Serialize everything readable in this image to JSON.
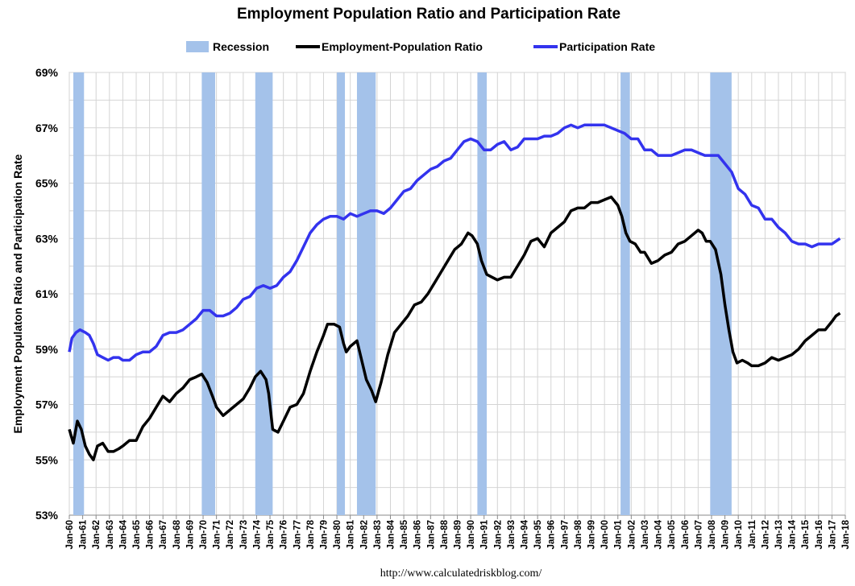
{
  "chart_data": {
    "type": "line",
    "title": "Employment Population Ratio and Participation Rate",
    "ylabel": "Employment Populaton Ratio and Participation Rate",
    "xlabel": "",
    "source": "http://www.calculatedriskblog.com/",
    "ylim": [
      53,
      69
    ],
    "xlim": [
      1960.0,
      2018.0
    ],
    "y_ticks": [
      53,
      55,
      57,
      59,
      61,
      63,
      65,
      67,
      69
    ],
    "y_tick_labels": [
      "53%",
      "55%",
      "57%",
      "59%",
      "61%",
      "63%",
      "65%",
      "67%",
      "69%"
    ],
    "x_tick_labels": [
      "Jan-60",
      "Jan-61",
      "Jan-62",
      "Jan-63",
      "Jan-64",
      "Jan-65",
      "Jan-66",
      "Jan-67",
      "Jan-68",
      "Jan-69",
      "Jan-70",
      "Jan-71",
      "Jan-72",
      "Jan-73",
      "Jan-74",
      "Jan-75",
      "Jan-76",
      "Jan-77",
      "Jan-78",
      "Jan-79",
      "Jan-80",
      "Jan-81",
      "Jan-82",
      "Jan-83",
      "Jan-84",
      "Jan-85",
      "Jan-86",
      "Jan-87",
      "Jan-88",
      "Jan-89",
      "Jan-90",
      "Jan-91",
      "Jan-92",
      "Jan-93",
      "Jan-94",
      "Jan-95",
      "Jan-96",
      "Jan-97",
      "Jan-98",
      "Jan-99",
      "Jan-00",
      "Jan-01",
      "Jan-02",
      "Jan-03",
      "Jan-04",
      "Jan-05",
      "Jan-06",
      "Jan-07",
      "Jan-08",
      "Jan-09",
      "Jan-10",
      "Jan-11",
      "Jan-12",
      "Jan-13",
      "Jan-14",
      "Jan-15",
      "Jan-16",
      "Jan-17",
      "Jan-18"
    ],
    "grid": true,
    "legend_position": "top-center",
    "legend": [
      {
        "name": "Recession",
        "kind": "band",
        "color": "#a4c2ea"
      },
      {
        "name": "Employment-Population Ratio",
        "kind": "line",
        "color": "#000000"
      },
      {
        "name": "Participation Rate",
        "kind": "line",
        "color": "#3333ee"
      }
    ],
    "recessions": [
      [
        1960.3,
        1961.1
      ],
      [
        1969.9,
        1970.9
      ],
      [
        1973.9,
        1975.2
      ],
      [
        1980.0,
        1980.6
      ],
      [
        1981.5,
        1982.9
      ],
      [
        1990.5,
        1991.2
      ],
      [
        2001.2,
        2001.9
      ],
      [
        2007.9,
        2009.5
      ]
    ],
    "series": [
      {
        "name": "Employment-Population Ratio",
        "color": "#000000",
        "x": [
          1960.0,
          1960.3,
          1960.6,
          1960.9,
          1961.2,
          1961.5,
          1961.8,
          1962.1,
          1962.5,
          1962.9,
          1963.3,
          1963.7,
          1964.0,
          1964.5,
          1965.0,
          1965.5,
          1966.0,
          1966.5,
          1967.0,
          1967.5,
          1968.0,
          1968.5,
          1969.0,
          1969.5,
          1969.9,
          1970.3,
          1970.7,
          1971.0,
          1971.5,
          1972.0,
          1972.5,
          1973.0,
          1973.5,
          1973.9,
          1974.3,
          1974.7,
          1974.9,
          1975.2,
          1975.6,
          1976.0,
          1976.5,
          1977.0,
          1977.5,
          1978.0,
          1978.5,
          1979.0,
          1979.3,
          1979.8,
          1980.2,
          1980.5,
          1980.7,
          1981.0,
          1981.5,
          1981.8,
          1982.2,
          1982.6,
          1982.9,
          1983.3,
          1983.8,
          1984.3,
          1984.8,
          1985.3,
          1985.8,
          1986.3,
          1986.8,
          1987.3,
          1987.8,
          1988.3,
          1988.8,
          1989.3,
          1989.8,
          1990.1,
          1990.5,
          1990.8,
          1991.2,
          1991.6,
          1992.0,
          1992.5,
          1993.0,
          1993.5,
          1994.0,
          1994.5,
          1995.0,
          1995.5,
          1996.0,
          1996.5,
          1997.0,
          1997.5,
          1998.0,
          1998.5,
          1999.0,
          1999.5,
          2000.0,
          2000.5,
          2001.0,
          2001.3,
          2001.6,
          2001.9,
          2002.3,
          2002.7,
          2003.0,
          2003.5,
          2004.0,
          2004.5,
          2005.0,
          2005.5,
          2006.0,
          2006.5,
          2007.0,
          2007.3,
          2007.6,
          2007.9,
          2008.3,
          2008.7,
          2009.0,
          2009.3,
          2009.6,
          2009.9,
          2010.3,
          2010.7,
          2011.0,
          2011.5,
          2012.0,
          2012.5,
          2013.0,
          2013.5,
          2014.0,
          2014.5,
          2015.0,
          2015.5,
          2016.0,
          2016.5,
          2017.0,
          2017.3,
          2017.6
        ],
        "values": [
          56.1,
          55.6,
          56.4,
          56.1,
          55.5,
          55.2,
          55.0,
          55.5,
          55.6,
          55.3,
          55.3,
          55.4,
          55.5,
          55.7,
          55.7,
          56.2,
          56.5,
          56.9,
          57.3,
          57.1,
          57.4,
          57.6,
          57.9,
          58.0,
          58.1,
          57.8,
          57.3,
          56.9,
          56.6,
          56.8,
          57.0,
          57.2,
          57.6,
          58.0,
          58.2,
          57.9,
          57.4,
          56.1,
          56.0,
          56.4,
          56.9,
          57.0,
          57.4,
          58.2,
          58.9,
          59.5,
          59.9,
          59.9,
          59.8,
          59.2,
          58.9,
          59.1,
          59.3,
          58.7,
          57.9,
          57.5,
          57.1,
          57.8,
          58.8,
          59.6,
          59.9,
          60.2,
          60.6,
          60.7,
          61.0,
          61.4,
          61.8,
          62.2,
          62.6,
          62.8,
          63.2,
          63.1,
          62.8,
          62.2,
          61.7,
          61.6,
          61.5,
          61.6,
          61.6,
          62.0,
          62.4,
          62.9,
          63.0,
          62.7,
          63.2,
          63.4,
          63.6,
          64.0,
          64.1,
          64.1,
          64.3,
          64.3,
          64.4,
          64.5,
          64.2,
          63.8,
          63.2,
          62.9,
          62.8,
          62.5,
          62.5,
          62.1,
          62.2,
          62.4,
          62.5,
          62.8,
          62.9,
          63.1,
          63.3,
          63.2,
          62.9,
          62.9,
          62.6,
          61.7,
          60.6,
          59.7,
          58.9,
          58.5,
          58.6,
          58.5,
          58.4,
          58.4,
          58.5,
          58.7,
          58.6,
          58.7,
          58.8,
          59.0,
          59.3,
          59.5,
          59.7,
          59.7,
          60.0,
          60.2,
          60.3
        ]
      },
      {
        "name": "Participation Rate",
        "color": "#3333ee",
        "x": [
          1960.0,
          1960.2,
          1960.5,
          1960.8,
          1961.2,
          1961.5,
          1961.8,
          1962.1,
          1962.5,
          1962.9,
          1963.3,
          1963.7,
          1964.0,
          1964.5,
          1965.0,
          1965.5,
          1966.0,
          1966.5,
          1967.0,
          1967.5,
          1968.0,
          1968.5,
          1969.0,
          1969.5,
          1970.0,
          1970.5,
          1971.0,
          1971.5,
          1972.0,
          1972.5,
          1973.0,
          1973.5,
          1974.0,
          1974.5,
          1975.0,
          1975.5,
          1976.0,
          1976.5,
          1977.0,
          1977.5,
          1978.0,
          1978.5,
          1979.0,
          1979.5,
          1980.0,
          1980.5,
          1981.0,
          1981.5,
          1982.0,
          1982.5,
          1983.0,
          1983.5,
          1984.0,
          1984.5,
          1985.0,
          1985.5,
          1986.0,
          1986.5,
          1987.0,
          1987.5,
          1988.0,
          1988.5,
          1989.0,
          1989.5,
          1990.0,
          1990.5,
          1991.0,
          1991.5,
          1992.0,
          1992.5,
          1993.0,
          1993.5,
          1994.0,
          1994.5,
          1995.0,
          1995.5,
          1996.0,
          1996.5,
          1997.0,
          1997.5,
          1998.0,
          1998.5,
          1999.0,
          1999.5,
          2000.0,
          2000.5,
          2001.0,
          2001.5,
          2002.0,
          2002.5,
          2003.0,
          2003.5,
          2004.0,
          2004.5,
          2005.0,
          2005.5,
          2006.0,
          2006.5,
          2007.0,
          2007.5,
          2008.0,
          2008.5,
          2009.0,
          2009.5,
          2010.0,
          2010.5,
          2011.0,
          2011.5,
          2012.0,
          2012.5,
          2013.0,
          2013.5,
          2014.0,
          2014.5,
          2015.0,
          2015.5,
          2016.0,
          2016.5,
          2017.0,
          2017.3,
          2017.6
        ],
        "values": [
          58.9,
          59.4,
          59.6,
          59.7,
          59.6,
          59.5,
          59.2,
          58.8,
          58.7,
          58.6,
          58.7,
          58.7,
          58.6,
          58.6,
          58.8,
          58.9,
          58.9,
          59.1,
          59.5,
          59.6,
          59.6,
          59.7,
          59.9,
          60.1,
          60.4,
          60.4,
          60.2,
          60.2,
          60.3,
          60.5,
          60.8,
          60.9,
          61.2,
          61.3,
          61.2,
          61.3,
          61.6,
          61.8,
          62.2,
          62.7,
          63.2,
          63.5,
          63.7,
          63.8,
          63.8,
          63.7,
          63.9,
          63.8,
          63.9,
          64.0,
          64.0,
          63.9,
          64.1,
          64.4,
          64.7,
          64.8,
          65.1,
          65.3,
          65.5,
          65.6,
          65.8,
          65.9,
          66.2,
          66.5,
          66.6,
          66.5,
          66.2,
          66.2,
          66.4,
          66.5,
          66.2,
          66.3,
          66.6,
          66.6,
          66.6,
          66.7,
          66.7,
          66.8,
          67.0,
          67.1,
          67.0,
          67.1,
          67.1,
          67.1,
          67.1,
          67.0,
          66.9,
          66.8,
          66.6,
          66.6,
          66.2,
          66.2,
          66.0,
          66.0,
          66.0,
          66.1,
          66.2,
          66.2,
          66.1,
          66.0,
          66.0,
          66.0,
          65.7,
          65.4,
          64.8,
          64.6,
          64.2,
          64.1,
          63.7,
          63.7,
          63.4,
          63.2,
          62.9,
          62.8,
          62.8,
          62.7,
          62.8,
          62.8,
          62.8,
          62.9,
          63.0
        ]
      }
    ]
  }
}
